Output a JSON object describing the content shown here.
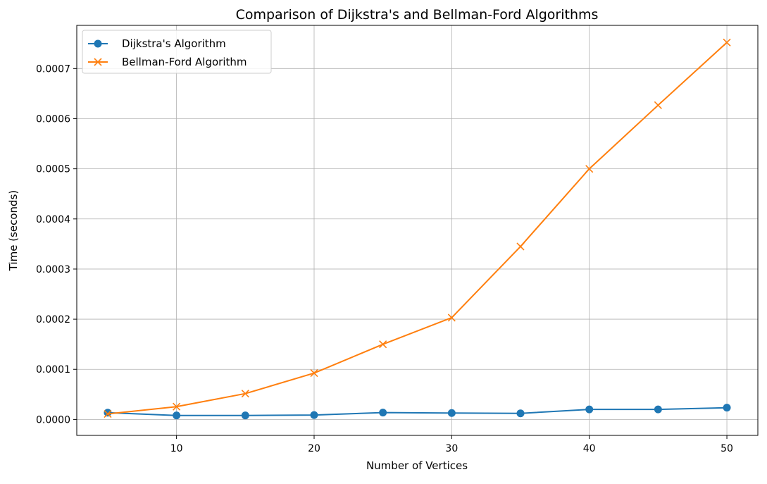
{
  "chart_data": {
    "type": "line",
    "title": "Comparison of Dijkstra's and Bellman-Ford Algorithms",
    "xlabel": "Number of Vertices",
    "ylabel": "Time (seconds)",
    "x": [
      5,
      10,
      15,
      20,
      25,
      30,
      35,
      40,
      45,
      50
    ],
    "xlim": [
      2.75,
      52.25
    ],
    "ylim": [
      -3.18e-05,
      0.0007862
    ],
    "xticks": [
      10,
      20,
      30,
      40,
      50
    ],
    "xtick_labels": [
      "10",
      "20",
      "30",
      "40",
      "50"
    ],
    "yticks": [
      0,
      0.0001,
      0.0002,
      0.0003,
      0.0004,
      0.0005,
      0.0006,
      0.0007
    ],
    "ytick_labels": [
      "0.0000",
      "0.0001",
      "0.0002",
      "0.0003",
      "0.0004",
      "0.0005",
      "0.0006",
      "0.0007"
    ],
    "grid": true,
    "legend_position": "top-left",
    "series": [
      {
        "name": "Dijkstra's Algorithm",
        "marker": "circle",
        "color": "#1f77b4",
        "values": [
          1.35e-05,
          8e-06,
          8e-06,
          8.8e-06,
          1.37e-05,
          1.28e-05,
          1.22e-05,
          2e-05,
          2e-05,
          2.35e-05
        ]
      },
      {
        "name": "Bellman-Ford Algorithm",
        "marker": "x",
        "color": "#ff7f0e",
        "values": [
          1.1e-05,
          2.55e-05,
          5.15e-05,
          9.25e-05,
          0.00015,
          0.000203,
          0.000345,
          0.0005,
          0.000627,
          0.000752
        ]
      }
    ]
  }
}
